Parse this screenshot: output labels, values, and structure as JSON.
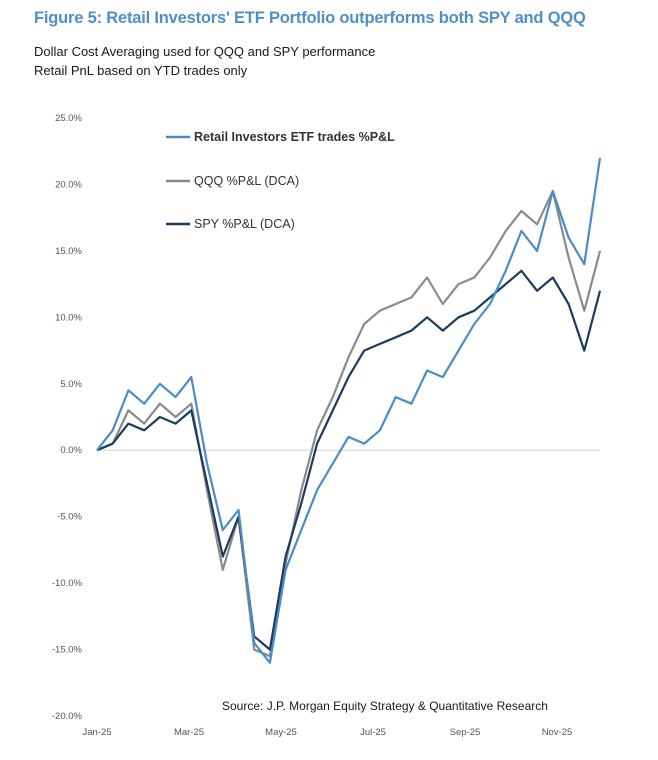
{
  "title": "Figure 5: Retail Investors' ETF Portfolio outperforms both SPY and QQQ",
  "subtitle_lines": [
    "Dollar Cost Averaging used for QQQ and SPY performance",
    "Retail PnL based on YTD trades only"
  ],
  "source": "Source: J.P. Morgan Equity Strategy & Quantitative Research",
  "chart_data": {
    "type": "line",
    "title": "Figure 5: Retail Investors' ETF Portfolio outperforms both SPY and QQQ",
    "xlabel": "",
    "ylabel": "",
    "ylim": [
      -20,
      25
    ],
    "y_ticks": [
      "25.0%",
      "20.0%",
      "15.0%",
      "10.0%",
      "5.0%",
      "0.0%",
      "-5.0%",
      "-10.0%",
      "-15.0%",
      "-20.0%"
    ],
    "x_ticks": [
      "Jan-25",
      "Mar-25",
      "May-25",
      "Jul-25",
      "Sep-25",
      "Nov-25"
    ],
    "grid": false,
    "legend_position": "top-left",
    "x": [
      "Jan-25",
      "Jan-25",
      "Feb-25",
      "Feb-25",
      "Feb-25",
      "Mar-25",
      "Mar-25",
      "Mar-25",
      "Apr-25",
      "Apr-25",
      "Apr-25",
      "May-25",
      "May-25",
      "May-25",
      "Jun-25",
      "Jun-25",
      "Jun-25",
      "Jul-25",
      "Jul-25",
      "Jul-25",
      "Aug-25",
      "Aug-25",
      "Aug-25",
      "Sep-25",
      "Sep-25",
      "Sep-25",
      "Oct-25",
      "Oct-25",
      "Oct-25",
      "Nov-25",
      "Nov-25",
      "Nov-25",
      "Dec-25"
    ],
    "series": [
      {
        "name": "Retail Investors ETF trades %P&L",
        "color": "#4a8cc7",
        "values": [
          0.0,
          1.5,
          4.5,
          3.5,
          5.0,
          4.0,
          5.5,
          -1.0,
          -6.0,
          -4.5,
          -14.5,
          -16.0,
          -9.0,
          -6.0,
          -3.0,
          -1.0,
          1.0,
          0.5,
          1.5,
          4.0,
          3.5,
          6.0,
          5.5,
          7.5,
          9.5,
          11.0,
          13.5,
          16.5,
          15.0,
          19.5,
          16.0,
          14.0,
          22.0
        ]
      },
      {
        "name": "QQQ %P&L (DCA)",
        "color": "#8a8a8a",
        "values": [
          0.0,
          0.5,
          3.0,
          2.0,
          3.5,
          2.5,
          3.5,
          -3.0,
          -9.0,
          -5.0,
          -15.0,
          -15.5,
          -8.5,
          -3.0,
          1.5,
          4.0,
          7.0,
          9.5,
          10.5,
          11.0,
          11.5,
          13.0,
          11.0,
          12.5,
          13.0,
          14.5,
          16.5,
          18.0,
          17.0,
          19.5,
          14.5,
          10.5,
          15.0
        ]
      },
      {
        "name": "SPY %P&L (DCA)",
        "color": "#1f3a5f",
        "values": [
          0.0,
          0.5,
          2.0,
          1.5,
          2.5,
          2.0,
          3.0,
          -2.5,
          -8.0,
          -5.0,
          -14.0,
          -15.0,
          -8.0,
          -4.0,
          0.5,
          3.0,
          5.5,
          7.5,
          8.0,
          8.5,
          9.0,
          10.0,
          9.0,
          10.0,
          10.5,
          11.5,
          12.5,
          13.5,
          12.0,
          13.0,
          11.0,
          7.5,
          12.0
        ]
      }
    ]
  }
}
